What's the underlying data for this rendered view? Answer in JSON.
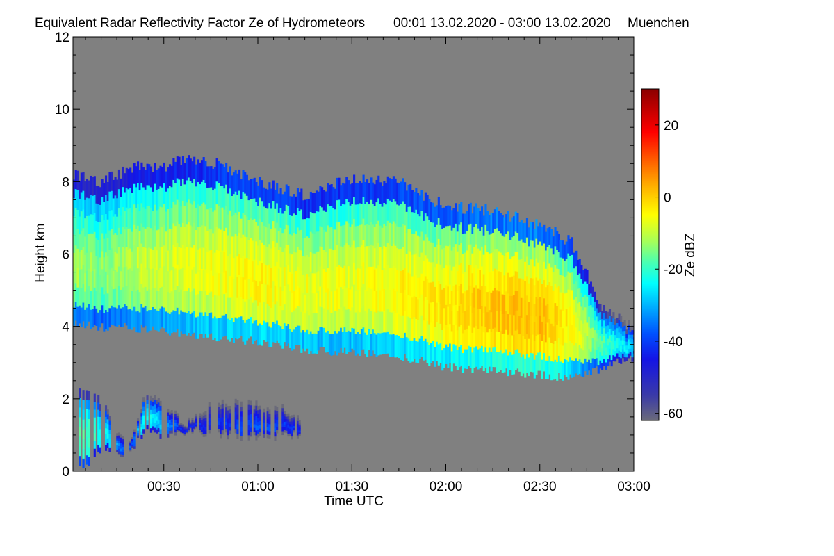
{
  "chart_data": {
    "type": "heatmap",
    "title": "Equivalent Radar Reflectivity Factor Ze of Hydrometeors",
    "period": "00:01 13.02.2020 - 03:00 13.02.2020",
    "location": "Muenchen",
    "xlabel": "Time UTC",
    "ylabel": "Height km",
    "xlim_minutes": [
      1,
      180
    ],
    "ylim_km": [
      0,
      12
    ],
    "x_ticks": [
      {
        "minute": 30,
        "label": "00:30"
      },
      {
        "minute": 60,
        "label": "01:00"
      },
      {
        "minute": 90,
        "label": "01:30"
      },
      {
        "minute": 120,
        "label": "02:00"
      },
      {
        "minute": 150,
        "label": "02:30"
      },
      {
        "minute": 180,
        "label": "03:00"
      }
    ],
    "y_ticks": [
      {
        "value": 0,
        "label": "0"
      },
      {
        "value": 2,
        "label": "2"
      },
      {
        "value": 4,
        "label": "4"
      },
      {
        "value": 6,
        "label": "6"
      },
      {
        "value": 8,
        "label": "8"
      },
      {
        "value": 10,
        "label": "10"
      },
      {
        "value": 12,
        "label": "12"
      }
    ],
    "colorbar": {
      "label": "Ze dBZ",
      "range": [
        -62,
        30
      ],
      "ticks": [
        {
          "value": 20,
          "label": "20"
        },
        {
          "value": 0,
          "label": "0"
        },
        {
          "value": -20,
          "label": "-20"
        },
        {
          "value": -40,
          "label": "-40"
        },
        {
          "value": -60,
          "label": "-60"
        }
      ],
      "stops": [
        {
          "value": -62,
          "color": "#6a6a7a"
        },
        {
          "value": -55,
          "color": "#3a3aa8"
        },
        {
          "value": -45,
          "color": "#1414e6"
        },
        {
          "value": -38,
          "color": "#0050ff"
        },
        {
          "value": -30,
          "color": "#00b4ff"
        },
        {
          "value": -24,
          "color": "#00ffff"
        },
        {
          "value": -18,
          "color": "#4cffb0"
        },
        {
          "value": -12,
          "color": "#aaff55"
        },
        {
          "value": -5,
          "color": "#ffff00"
        },
        {
          "value": 3,
          "color": "#ffb000"
        },
        {
          "value": 10,
          "color": "#ff6000"
        },
        {
          "value": 18,
          "color": "#ff0000"
        },
        {
          "value": 30,
          "color": "#8b0000"
        }
      ]
    },
    "background_color": "#808080",
    "echo_regions": [
      {
        "name": "main-stratiform-layer",
        "time_minutes": [
          1,
          10,
          20,
          30,
          38,
          50,
          60,
          75,
          90,
          105,
          120,
          135,
          150,
          160,
          170,
          180
        ],
        "top_km": [
          8.2,
          8.0,
          8.4,
          8.4,
          8.7,
          8.4,
          8.0,
          7.6,
          8.1,
          8.0,
          7.3,
          7.2,
          6.8,
          6.3,
          4.5,
          3.9
        ],
        "base_km": [
          4.2,
          4.1,
          4.1,
          4.0,
          3.9,
          3.8,
          3.7,
          3.5,
          3.4,
          3.3,
          3.0,
          2.9,
          2.8,
          2.7,
          3.0,
          3.3
        ],
        "core_dbz": [
          -12,
          -14,
          -10,
          -8,
          -7,
          -5,
          -4,
          -6,
          -6,
          -4,
          -2,
          1,
          2,
          -4,
          -18,
          -28
        ]
      },
      {
        "name": "low-level-fragments",
        "time_minutes": [
          1,
          6,
          12,
          18,
          24,
          30,
          36,
          44,
          52,
          60,
          68,
          74
        ],
        "top_km": [
          2.3,
          2.2,
          1.6,
          0.6,
          2.1,
          1.9,
          1.2,
          1.8,
          1.9,
          1.8,
          1.7,
          1.3
        ],
        "base_km": [
          0.1,
          0.4,
          0.7,
          0.5,
          1.3,
          1.1,
          1.2,
          1.2,
          1.1,
          1.0,
          1.1,
          1.1
        ],
        "core_dbz": [
          -14,
          -18,
          -24,
          -40,
          -22,
          -30,
          -44,
          -42,
          -40,
          -38,
          -40,
          -44
        ]
      }
    ]
  }
}
